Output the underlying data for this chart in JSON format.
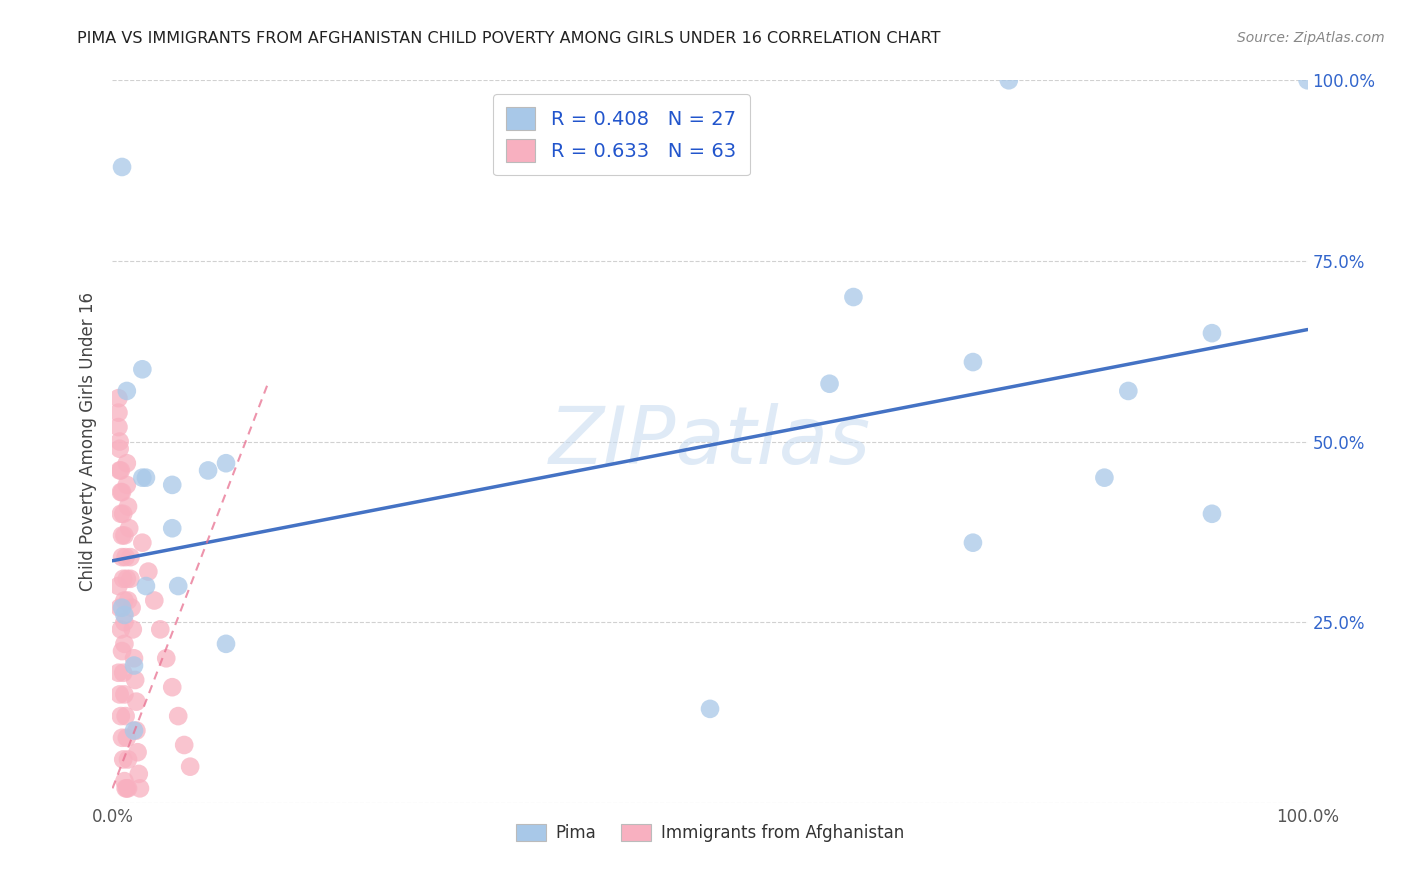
{
  "title": "PIMA VS IMMIGRANTS FROM AFGHANISTAN CHILD POVERTY AMONG GIRLS UNDER 16 CORRELATION CHART",
  "source": "Source: ZipAtlas.com",
  "ylabel": "Child Poverty Among Girls Under 16",
  "xlim": [
    0.0,
    1.0
  ],
  "ylim": [
    0.0,
    1.0
  ],
  "xticks": [
    0.0,
    0.25,
    0.5,
    0.75,
    1.0
  ],
  "xtick_labels": [
    "0.0%",
    "",
    "",
    "",
    "100.0%"
  ],
  "ytick_right": [
    0.0,
    0.25,
    0.5,
    0.75,
    1.0
  ],
  "ytick_right_labels": [
    "",
    "25.0%",
    "50.0%",
    "75.0%",
    "100.0%"
  ],
  "legend_blue_R": "0.408",
  "legend_blue_N": "27",
  "legend_pink_R": "0.633",
  "legend_pink_N": "63",
  "legend_blue_label": "Pima",
  "legend_pink_label": "Immigrants from Afghanistan",
  "blue_scatter_color": "#a8c8e8",
  "pink_scatter_color": "#f8b0c0",
  "blue_line_color": "#4472c4",
  "pink_line_color": "#e87090",
  "watermark_color": "#c5daf0",
  "pima_x": [
    0.008,
    0.012,
    0.025,
    0.025,
    0.028,
    0.05,
    0.05,
    0.055,
    0.08,
    0.01,
    0.008,
    0.095,
    0.018,
    0.028,
    0.5,
    0.62,
    0.72,
    0.85,
    0.92,
    0.92,
    1.0,
    0.72,
    0.83,
    0.6,
    0.75,
    0.018,
    0.095
  ],
  "pima_y": [
    0.88,
    0.57,
    0.6,
    0.45,
    0.45,
    0.44,
    0.38,
    0.3,
    0.46,
    0.26,
    0.27,
    0.22,
    0.1,
    0.3,
    0.13,
    0.7,
    0.61,
    0.57,
    0.4,
    0.65,
    1.0,
    0.36,
    0.45,
    0.58,
    1.0,
    0.19,
    0.47
  ],
  "afghan_x": [
    0.005,
    0.005,
    0.006,
    0.006,
    0.007,
    0.007,
    0.008,
    0.008,
    0.009,
    0.01,
    0.01,
    0.01,
    0.012,
    0.012,
    0.013,
    0.014,
    0.015,
    0.015,
    0.016,
    0.017,
    0.018,
    0.019,
    0.02,
    0.02,
    0.021,
    0.022,
    0.023,
    0.005,
    0.006,
    0.007,
    0.008,
    0.009,
    0.01,
    0.011,
    0.012,
    0.013,
    0.005,
    0.006,
    0.007,
    0.008,
    0.009,
    0.01,
    0.011,
    0.012,
    0.013,
    0.005,
    0.006,
    0.007,
    0.008,
    0.009,
    0.01,
    0.011,
    0.012,
    0.013,
    0.025,
    0.03,
    0.035,
    0.04,
    0.045,
    0.05,
    0.055,
    0.06,
    0.065
  ],
  "afghan_y": [
    0.56,
    0.54,
    0.5,
    0.46,
    0.43,
    0.4,
    0.37,
    0.34,
    0.31,
    0.28,
    0.25,
    0.22,
    0.47,
    0.44,
    0.41,
    0.38,
    0.34,
    0.31,
    0.27,
    0.24,
    0.2,
    0.17,
    0.14,
    0.1,
    0.07,
    0.04,
    0.02,
    0.18,
    0.15,
    0.12,
    0.09,
    0.06,
    0.03,
    0.02,
    0.02,
    0.02,
    0.3,
    0.27,
    0.24,
    0.21,
    0.18,
    0.15,
    0.12,
    0.09,
    0.06,
    0.52,
    0.49,
    0.46,
    0.43,
    0.4,
    0.37,
    0.34,
    0.31,
    0.28,
    0.36,
    0.32,
    0.28,
    0.24,
    0.2,
    0.16,
    0.12,
    0.08,
    0.05
  ],
  "blue_line_x": [
    0.0,
    1.0
  ],
  "blue_line_y": [
    0.335,
    0.655
  ],
  "pink_line_x": [
    0.0,
    0.13
  ],
  "pink_line_y": [
    0.02,
    0.58
  ]
}
